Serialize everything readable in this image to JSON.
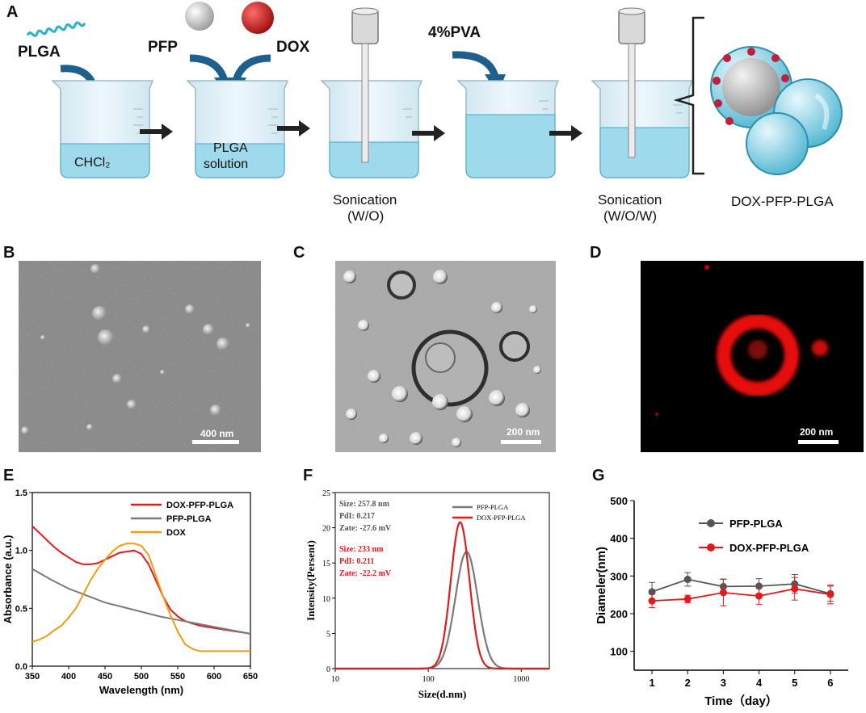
{
  "panels": {
    "a": {
      "letter": "A",
      "step1": {
        "reagent": "PLGA",
        "beaker_label": "CHCl₂"
      },
      "step2": {
        "reagent_left": "PFP",
        "reagent_right": "DOX",
        "beaker_label_1": "PLGA",
        "beaker_label_2": "solution"
      },
      "step3": {
        "caption_1": "Sonication",
        "caption_2": "(W/O)"
      },
      "step4": {
        "reagent": "4%PVA"
      },
      "step5": {
        "caption_1": "Sonication",
        "caption_2": "(W/O/W)"
      },
      "product": {
        "caption": "DOX-PFP-PLGA"
      }
    },
    "b": {
      "letter": "B",
      "scale_label": "400 nm"
    },
    "c": {
      "letter": "C",
      "scale_label": "200 nm"
    },
    "d": {
      "letter": "D",
      "scale_label": "200 nm"
    },
    "e": {
      "letter": "E"
    },
    "f": {
      "letter": "F"
    },
    "g": {
      "letter": "G"
    }
  },
  "colors": {
    "red": "#e31a1c",
    "gray": "#7a7a7a",
    "orange": "#f39c12",
    "arrow_blue": "#1f5f8b",
    "dark_gray": "#555555",
    "liquid": "#9ed9ec"
  },
  "chart_data": [
    {
      "type": "line",
      "panel": "E",
      "xlabel": "Wavelength (nm)",
      "ylabel": "Absorbance (a.u.)",
      "xlim": [
        350,
        650
      ],
      "ylim": [
        0,
        1.5
      ],
      "xticks": [
        "350",
        "400",
        "450",
        "500",
        "550",
        "600",
        "650"
      ],
      "yticks": [
        "0.0",
        "0.5",
        "1.0",
        "1.5"
      ],
      "legend_position": "top-right",
      "series": [
        {
          "name": "DOX-PFP-PLGA",
          "color": "#e31a1c",
          "x": [
            350,
            360,
            370,
            380,
            390,
            400,
            410,
            420,
            430,
            440,
            450,
            460,
            470,
            480,
            490,
            500,
            510,
            520,
            530,
            540,
            550,
            560,
            570,
            580,
            590,
            600,
            610,
            620,
            630,
            640,
            650
          ],
          "y": [
            1.21,
            1.15,
            1.09,
            1.03,
            0.98,
            0.94,
            0.9,
            0.88,
            0.88,
            0.89,
            0.92,
            0.95,
            0.98,
            0.99,
            1.0,
            0.97,
            0.88,
            0.74,
            0.6,
            0.49,
            0.43,
            0.39,
            0.37,
            0.35,
            0.34,
            0.33,
            0.32,
            0.31,
            0.3,
            0.29,
            0.28
          ]
        },
        {
          "name": "PFP-PLGA",
          "color": "#7a7a7a",
          "x": [
            350,
            375,
            400,
            425,
            450,
            475,
            500,
            525,
            550,
            575,
            600,
            625,
            650
          ],
          "y": [
            0.84,
            0.75,
            0.67,
            0.61,
            0.55,
            0.51,
            0.47,
            0.43,
            0.4,
            0.37,
            0.34,
            0.31,
            0.28
          ]
        },
        {
          "name": "DOX",
          "color": "#f39c12",
          "x": [
            350,
            360,
            370,
            380,
            390,
            400,
            410,
            420,
            430,
            440,
            450,
            460,
            470,
            480,
            490,
            500,
            510,
            520,
            530,
            540,
            550,
            560,
            570,
            580,
            600,
            625,
            650
          ],
          "y": [
            0.21,
            0.23,
            0.26,
            0.31,
            0.35,
            0.42,
            0.5,
            0.62,
            0.74,
            0.84,
            0.92,
            0.99,
            1.04,
            1.06,
            1.06,
            1.04,
            0.96,
            0.78,
            0.6,
            0.44,
            0.3,
            0.19,
            0.15,
            0.13,
            0.13,
            0.13,
            0.13
          ]
        }
      ]
    },
    {
      "type": "line",
      "panel": "F",
      "xlabel": "Size(d.nm)",
      "ylabel": "Intensity(Persent)",
      "xscale": "log",
      "xlim": [
        10,
        2000
      ],
      "ylim": [
        0,
        25
      ],
      "xticks": [
        "10",
        "100",
        "1000"
      ],
      "yticks": [
        "0",
        "5",
        "10",
        "15",
        "20",
        "25"
      ],
      "legend_position": "top-right",
      "annotations": [
        {
          "series": "PFP-PLGA",
          "lines": [
            "Size: 257.8 nm",
            "PdI: 0.217",
            "Zate: -27.6 mV"
          ]
        },
        {
          "series": "DOX-PFP-PLGA",
          "lines": [
            "Size: 233 nm",
            "PdI: 0.211",
            "Zate: -22.2 mV"
          ]
        }
      ],
      "series": [
        {
          "name": "PFP-PLGA",
          "color": "#7a7a7a",
          "peak_x": 257.8,
          "peak_y": 16.6,
          "log_sigma": 0.12
        },
        {
          "name": "DOX-PFP-PLGA",
          "color": "#e31a1c",
          "peak_x": 220,
          "peak_y": 20.8,
          "log_sigma": 0.1
        }
      ]
    },
    {
      "type": "line",
      "panel": "G",
      "xlabel": "Time（day）",
      "ylabel": "Diameler(nm)",
      "xlim": [
        0.5,
        6.5
      ],
      "ylim": [
        50,
        500
      ],
      "xticks": [
        "1",
        "2",
        "3",
        "4",
        "5",
        "6"
      ],
      "yticks": [
        "100",
        "200",
        "300",
        "400",
        "500"
      ],
      "legend_position": "top-center",
      "series": [
        {
          "name": "PFP-PLGA",
          "color": "#555555",
          "x": [
            1,
            2,
            3,
            4,
            5,
            6
          ],
          "y": [
            258,
            291,
            272,
            273,
            279,
            253
          ],
          "err": [
            25,
            18,
            20,
            20,
            25,
            20
          ]
        },
        {
          "name": "DOX-PFP-PLGA",
          "color": "#e31a1c",
          "x": [
            1,
            2,
            3,
            4,
            5,
            6
          ],
          "y": [
            234,
            239,
            256,
            247,
            266,
            251
          ],
          "err": [
            18,
            10,
            35,
            22,
            30,
            25
          ]
        }
      ]
    }
  ]
}
